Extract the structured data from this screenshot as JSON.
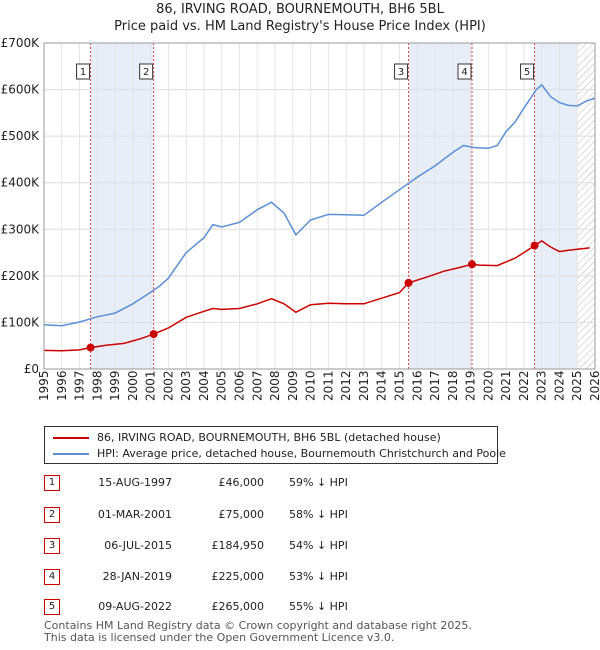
{
  "title": "86, IRVING ROAD, BOURNEMOUTH, BH6 5BL",
  "subtitle": "Price paid vs. HM Land Registry's House Price Index (HPI)",
  "colors": {
    "property": "#cc0000",
    "hpi": "#5b8fd4",
    "shade": "#e8eef8",
    "marker_line": "#dd4444",
    "hatch": "#bbbbbb"
  },
  "chart_data": {
    "type": "line",
    "title": "86, IRVING ROAD, BOURNEMOUTH, BH6 5BL",
    "subtitle": "Price paid vs. HM Land Registry's House Price Index (HPI)",
    "xlim": [
      1995,
      2026
    ],
    "ylim": [
      0,
      700000
    ],
    "x_ticks": [
      "1995",
      "1996",
      "1997",
      "1998",
      "1999",
      "2000",
      "2001",
      "2002",
      "2003",
      "2004",
      "2005",
      "2006",
      "2007",
      "2008",
      "2009",
      "2010",
      "2011",
      "2012",
      "2013",
      "2014",
      "2015",
      "2016",
      "2017",
      "2018",
      "2019",
      "2020",
      "2021",
      "2022",
      "2023",
      "2024",
      "2025",
      "2026"
    ],
    "y_ticks": [
      {
        "value": 0,
        "label": "£0"
      },
      {
        "value": 100000,
        "label": "£100K"
      },
      {
        "value": 200000,
        "label": "£200K"
      },
      {
        "value": 300000,
        "label": "£300K"
      },
      {
        "value": 400000,
        "label": "£400K"
      },
      {
        "value": 500000,
        "label": "£500K"
      },
      {
        "value": 600000,
        "label": "£600K"
      },
      {
        "value": 700000,
        "label": "£700K"
      }
    ],
    "series": [
      {
        "name": "86, IRVING ROAD, BOURNEMOUTH, BH6 5BL (detached house)",
        "color": "#cc0000",
        "points": [
          [
            1995.0,
            40000
          ],
          [
            1996.0,
            39000
          ],
          [
            1997.0,
            41000
          ],
          [
            1997.62,
            46000
          ],
          [
            1998.5,
            51000
          ],
          [
            1999.5,
            55000
          ],
          [
            2000.5,
            66000
          ],
          [
            2001.17,
            75000
          ],
          [
            2002.0,
            88000
          ],
          [
            2003.0,
            111000
          ],
          [
            2004.0,
            124000
          ],
          [
            2004.5,
            130000
          ],
          [
            2005.0,
            128000
          ],
          [
            2006.0,
            130000
          ],
          [
            2007.0,
            140000
          ],
          [
            2007.8,
            151000
          ],
          [
            2008.5,
            140000
          ],
          [
            2009.17,
            122000
          ],
          [
            2010.0,
            138000
          ],
          [
            2011.0,
            141000
          ],
          [
            2012.0,
            140000
          ],
          [
            2013.0,
            140000
          ],
          [
            2014.0,
            152000
          ],
          [
            2015.0,
            164000
          ],
          [
            2015.51,
            184950
          ],
          [
            2016.5,
            197000
          ],
          [
            2017.5,
            210000
          ],
          [
            2018.5,
            219000
          ],
          [
            2019.08,
            225000
          ],
          [
            2019.5,
            223000
          ],
          [
            2020.5,
            222000
          ],
          [
            2021.5,
            238000
          ],
          [
            2022.0,
            250000
          ],
          [
            2022.6,
            265000
          ],
          [
            2023.0,
            275000
          ],
          [
            2023.5,
            262000
          ],
          [
            2024.0,
            252000
          ],
          [
            2024.5,
            255000
          ],
          [
            2025.0,
            257000
          ],
          [
            2025.7,
            260000
          ]
        ]
      },
      {
        "name": "HPI: Average price, detached house, Bournemouth Christchurch and Poole",
        "color": "#5b8fd4",
        "points": [
          [
            1995.0,
            95000
          ],
          [
            1996.0,
            93000
          ],
          [
            1997.0,
            101000
          ],
          [
            1998.0,
            112000
          ],
          [
            1999.0,
            120000
          ],
          [
            2000.0,
            140000
          ],
          [
            2001.0,
            165000
          ],
          [
            2001.5,
            178000
          ],
          [
            2002.0,
            195000
          ],
          [
            2003.0,
            250000
          ],
          [
            2004.0,
            282000
          ],
          [
            2004.5,
            310000
          ],
          [
            2005.0,
            305000
          ],
          [
            2006.0,
            315000
          ],
          [
            2007.0,
            342000
          ],
          [
            2007.8,
            358000
          ],
          [
            2008.5,
            335000
          ],
          [
            2009.17,
            288000
          ],
          [
            2010.0,
            320000
          ],
          [
            2011.0,
            332000
          ],
          [
            2012.0,
            331000
          ],
          [
            2013.0,
            330000
          ],
          [
            2014.0,
            358000
          ],
          [
            2015.0,
            385000
          ],
          [
            2016.0,
            412000
          ],
          [
            2017.0,
            436000
          ],
          [
            2018.0,
            465000
          ],
          [
            2018.6,
            480000
          ],
          [
            2019.3,
            475000
          ],
          [
            2020.0,
            474000
          ],
          [
            2020.5,
            480000
          ],
          [
            2021.0,
            510000
          ],
          [
            2021.5,
            530000
          ],
          [
            2022.0,
            560000
          ],
          [
            2022.7,
            600000
          ],
          [
            2023.0,
            610000
          ],
          [
            2023.5,
            585000
          ],
          [
            2024.0,
            572000
          ],
          [
            2024.5,
            566000
          ],
          [
            2025.0,
            565000
          ],
          [
            2025.5,
            575000
          ],
          [
            2026.0,
            582000
          ]
        ]
      }
    ],
    "sales": [
      {
        "num": "1",
        "x": 1997.62,
        "value": 46000,
        "date": "15-AUG-1997",
        "price": "£46,000",
        "hpi": "59% ↓ HPI"
      },
      {
        "num": "2",
        "x": 2001.17,
        "value": 75000,
        "date": "01-MAR-2001",
        "price": "£75,000",
        "hpi": "58% ↓ HPI"
      },
      {
        "num": "3",
        "x": 2015.51,
        "value": 184950,
        "date": "06-JUL-2015",
        "price": "£184,950",
        "hpi": "54% ↓ HPI"
      },
      {
        "num": "4",
        "x": 2019.08,
        "value": 225000,
        "date": "28-JAN-2019",
        "price": "£225,000",
        "hpi": "53% ↓ HPI"
      },
      {
        "num": "5",
        "x": 2022.6,
        "value": 265000,
        "date": "09-AUG-2022",
        "price": "£265,000",
        "hpi": "55% ↓ HPI"
      }
    ],
    "shaded_ranges": [
      [
        1997.62,
        2001.17
      ],
      [
        2015.51,
        2019.08
      ],
      [
        2022.6,
        2025.0
      ]
    ],
    "hatch_start": 2025.0
  },
  "legend": {
    "property": "86, IRVING ROAD, BOURNEMOUTH, BH6 5BL (detached house)",
    "hpi": "HPI: Average price, detached house, Bournemouth Christchurch and Poole"
  },
  "footer": {
    "line1": "Contains HM Land Registry data © Crown copyright and database right 2025.",
    "line2": "This data is licensed under the Open Government Licence v3.0."
  }
}
